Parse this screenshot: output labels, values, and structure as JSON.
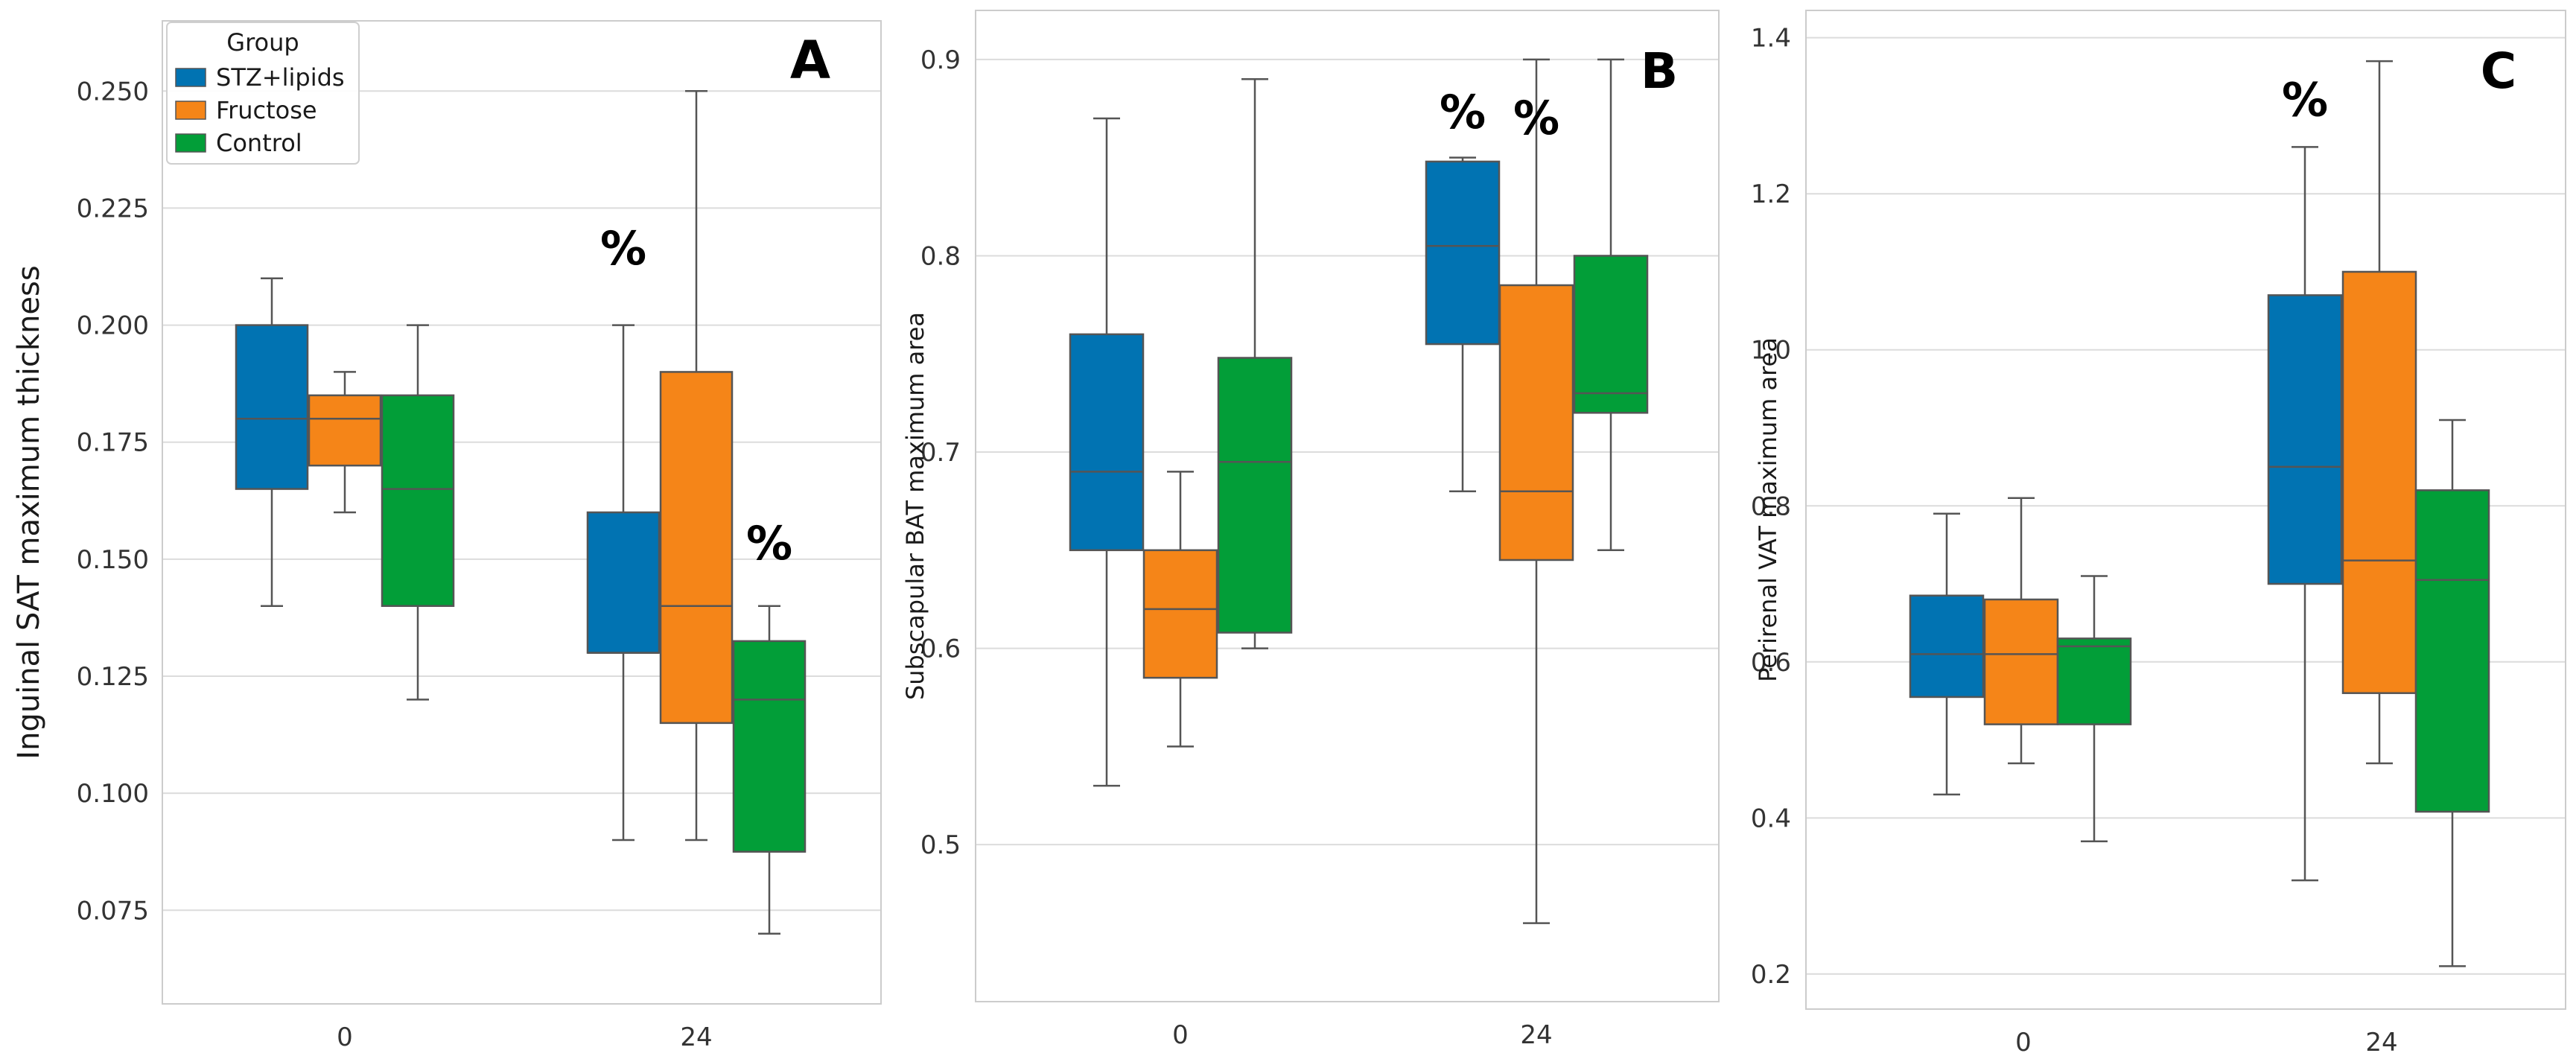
{
  "chart_data": [
    {
      "type": "box",
      "panel_label": "A",
      "xlabel": "",
      "ylabel": "Inguinal SAT maximum thickness",
      "categories": [
        "0",
        "24"
      ],
      "ylim": [
        0.055,
        0.265
      ],
      "yticks": [
        "0.075",
        "0.100",
        "0.125",
        "0.150",
        "0.175",
        "0.200",
        "0.225",
        "0.250"
      ],
      "ytick_values": [
        0.075,
        0.1,
        0.125,
        0.15,
        0.175,
        0.2,
        0.225,
        0.25
      ],
      "grid": true,
      "legend": {
        "title": "Group",
        "placement": "top-left",
        "entries": [
          "STZ+lipids",
          "Fructose",
          "Control"
        ]
      },
      "series": [
        {
          "name": "STZ+lipids",
          "color": "#0173b2",
          "boxes": [
            {
              "whisker_low": 0.14,
              "q1": 0.165,
              "median": 0.18,
              "q3": 0.2,
              "whisker_high": 0.21
            },
            {
              "whisker_low": 0.09,
              "q1": 0.13,
              "median": 0.13,
              "q3": 0.16,
              "whisker_high": 0.2
            }
          ]
        },
        {
          "name": "Fructose",
          "color": "#f58518",
          "boxes": [
            {
              "whisker_low": 0.16,
              "q1": 0.17,
              "median": 0.18,
              "q3": 0.185,
              "whisker_high": 0.19
            },
            {
              "whisker_low": 0.09,
              "q1": 0.115,
              "median": 0.14,
              "q3": 0.19,
              "whisker_high": 0.25
            }
          ]
        },
        {
          "name": "Control",
          "color": "#029e38",
          "boxes": [
            {
              "whisker_low": 0.12,
              "q1": 0.14,
              "median": 0.165,
              "q3": 0.185,
              "whisker_high": 0.2
            },
            {
              "whisker_low": 0.07,
              "q1": 0.0875,
              "median": 0.12,
              "q3": 0.1325,
              "whisker_high": 0.14
            }
          ]
        }
      ],
      "annotations": [
        {
          "text": "%",
          "category": "24",
          "series": "STZ+lipids",
          "y": 0.213
        },
        {
          "text": "%",
          "category": "24",
          "series": "Control",
          "y": 0.15
        }
      ]
    },
    {
      "type": "box",
      "panel_label": "B",
      "xlabel": "",
      "ylabel": "Subscapular BAT maximum area",
      "categories": [
        "0",
        "24"
      ],
      "ylim": [
        0.42,
        0.925
      ],
      "yticks": [
        "0.5",
        "0.6",
        "0.7",
        "0.8",
        "0.9"
      ],
      "ytick_values": [
        0.5,
        0.6,
        0.7,
        0.8,
        0.9
      ],
      "grid": true,
      "series": [
        {
          "name": "STZ+lipids",
          "color": "#0173b2",
          "boxes": [
            {
              "whisker_low": 0.53,
              "q1": 0.65,
              "median": 0.69,
              "q3": 0.76,
              "whisker_high": 0.87
            },
            {
              "whisker_low": 0.68,
              "q1": 0.755,
              "median": 0.805,
              "q3": 0.848,
              "whisker_high": 0.85
            }
          ]
        },
        {
          "name": "Fructose",
          "color": "#f58518",
          "boxes": [
            {
              "whisker_low": 0.55,
              "q1": 0.585,
              "median": 0.62,
              "q3": 0.65,
              "whisker_high": 0.69
            },
            {
              "whisker_low": 0.46,
              "q1": 0.645,
              "median": 0.68,
              "q3": 0.785,
              "whisker_high": 0.9
            }
          ]
        },
        {
          "name": "Control",
          "color": "#029e38",
          "boxes": [
            {
              "whisker_low": 0.6,
              "q1": 0.608,
              "median": 0.695,
              "q3": 0.748,
              "whisker_high": 0.89
            },
            {
              "whisker_low": 0.65,
              "q1": 0.72,
              "median": 0.73,
              "q3": 0.8,
              "whisker_high": 0.9
            }
          ]
        }
      ],
      "annotations": [
        {
          "text": "%",
          "category": "24",
          "series": "STZ+lipids",
          "y": 0.865
        },
        {
          "text": "%",
          "category": "24",
          "series": "Fructose",
          "y": 0.862
        }
      ]
    },
    {
      "type": "box",
      "panel_label": "C",
      "xlabel": "",
      "ylabel": "Perirenal VAT maximum area",
      "categories": [
        "0",
        "24"
      ],
      "ylim": [
        0.155,
        1.435
      ],
      "yticks": [
        "0.2",
        "0.4",
        "0.6",
        "0.8",
        "1.0",
        "1.2",
        "1.4"
      ],
      "ytick_values": [
        0.2,
        0.4,
        0.6,
        0.8,
        1.0,
        1.2,
        1.4
      ],
      "grid": true,
      "series": [
        {
          "name": "STZ+lipids",
          "color": "#0173b2",
          "boxes": [
            {
              "whisker_low": 0.43,
              "q1": 0.555,
              "median": 0.61,
              "q3": 0.685,
              "whisker_high": 0.79
            },
            {
              "whisker_low": 0.32,
              "q1": 0.7,
              "median": 0.85,
              "q3": 1.07,
              "whisker_high": 1.26
            }
          ]
        },
        {
          "name": "Fructose",
          "color": "#f58518",
          "boxes": [
            {
              "whisker_low": 0.47,
              "q1": 0.52,
              "median": 0.61,
              "q3": 0.68,
              "whisker_high": 0.81
            },
            {
              "whisker_low": 0.47,
              "q1": 0.56,
              "median": 0.73,
              "q3": 1.1,
              "whisker_high": 1.37
            }
          ]
        },
        {
          "name": "Control",
          "color": "#029e38",
          "boxes": [
            {
              "whisker_low": 0.37,
              "q1": 0.52,
              "median": 0.62,
              "q3": 0.63,
              "whisker_high": 0.71
            },
            {
              "whisker_low": 0.21,
              "q1": 0.408,
              "median": 0.705,
              "q3": 0.82,
              "whisker_high": 0.91
            }
          ]
        }
      ],
      "annotations": [
        {
          "text": "%",
          "category": "24",
          "series": "STZ+lipids",
          "y": 1.3
        }
      ]
    }
  ]
}
